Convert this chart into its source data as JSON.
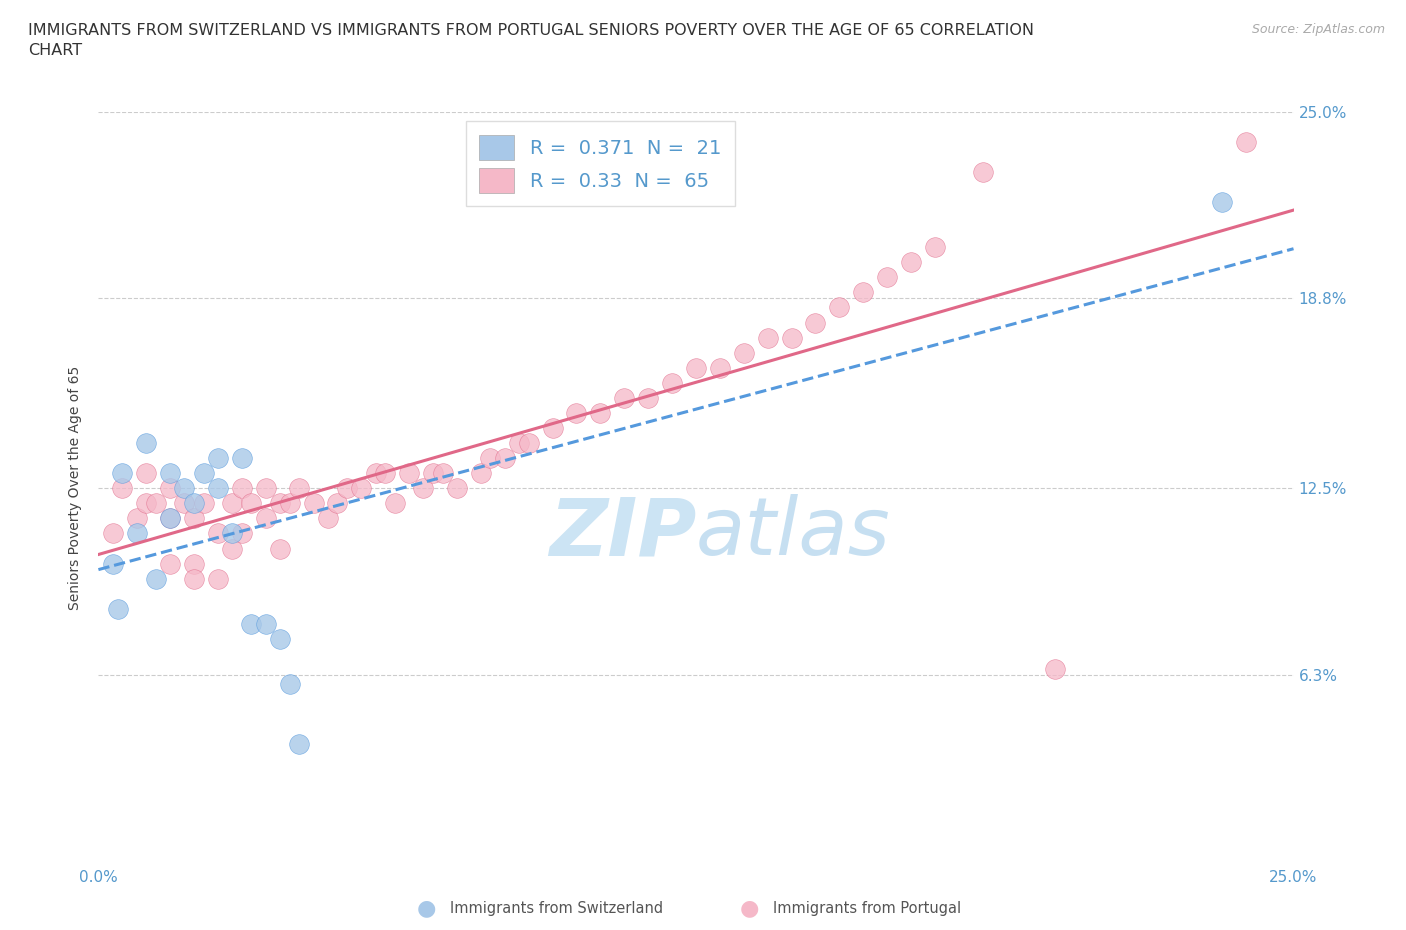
{
  "title": "IMMIGRANTS FROM SWITZERLAND VS IMMIGRANTS FROM PORTUGAL SENIORS POVERTY OVER THE AGE OF 65 CORRELATION\nCHART",
  "source": "Source: ZipAtlas.com",
  "ylabel": "Seniors Poverty Over the Age of 65",
  "legend_labels": [
    "Immigrants from Switzerland",
    "Immigrants from Portugal"
  ],
  "r_switzerland": 0.371,
  "n_switzerland": 21,
  "r_portugal": 0.33,
  "n_portugal": 65,
  "xlim": [
    0.0,
    0.25
  ],
  "ylim": [
    0.0,
    0.25
  ],
  "yticks": [
    0.063,
    0.125,
    0.188,
    0.25
  ],
  "ytick_labels": [
    "6.3%",
    "12.5%",
    "18.8%",
    "25.0%"
  ],
  "xticks": [
    0.0,
    0.0625,
    0.125,
    0.1875,
    0.25
  ],
  "xtick_labels": [
    "0.0%",
    "",
    "",
    "",
    "25.0%"
  ],
  "color_switzerland": "#a8c8e8",
  "color_portugal": "#f5b8c8",
  "trendline_color_switzerland": "#5599dd",
  "trendline_color_portugal": "#e06888",
  "watermark_color": "#cce4f4",
  "tick_color": "#5599cc",
  "title_fontsize": 11.5,
  "axis_label_fontsize": 10,
  "tick_fontsize": 11,
  "background_color": "#ffffff",
  "swiss_x": [
    0.003,
    0.004,
    0.005,
    0.008,
    0.01,
    0.012,
    0.015,
    0.015,
    0.018,
    0.02,
    0.022,
    0.025,
    0.025,
    0.028,
    0.03,
    0.032,
    0.035,
    0.038,
    0.04,
    0.042,
    0.235
  ],
  "swiss_y": [
    0.1,
    0.085,
    0.13,
    0.11,
    0.14,
    0.095,
    0.13,
    0.115,
    0.125,
    0.12,
    0.13,
    0.135,
    0.125,
    0.11,
    0.135,
    0.08,
    0.08,
    0.075,
    0.06,
    0.04,
    0.22
  ],
  "port_x": [
    0.003,
    0.005,
    0.008,
    0.01,
    0.01,
    0.012,
    0.015,
    0.015,
    0.015,
    0.018,
    0.02,
    0.02,
    0.02,
    0.022,
    0.025,
    0.025,
    0.028,
    0.028,
    0.03,
    0.03,
    0.032,
    0.035,
    0.035,
    0.038,
    0.038,
    0.04,
    0.042,
    0.045,
    0.048,
    0.05,
    0.052,
    0.055,
    0.058,
    0.06,
    0.062,
    0.065,
    0.068,
    0.07,
    0.072,
    0.075,
    0.08,
    0.082,
    0.085,
    0.088,
    0.09,
    0.095,
    0.1,
    0.105,
    0.11,
    0.115,
    0.12,
    0.125,
    0.13,
    0.135,
    0.14,
    0.145,
    0.15,
    0.155,
    0.16,
    0.165,
    0.17,
    0.175,
    0.2,
    0.185,
    0.24
  ],
  "port_y": [
    0.11,
    0.125,
    0.115,
    0.12,
    0.13,
    0.12,
    0.1,
    0.115,
    0.125,
    0.12,
    0.1,
    0.115,
    0.095,
    0.12,
    0.095,
    0.11,
    0.105,
    0.12,
    0.11,
    0.125,
    0.12,
    0.115,
    0.125,
    0.105,
    0.12,
    0.12,
    0.125,
    0.12,
    0.115,
    0.12,
    0.125,
    0.125,
    0.13,
    0.13,
    0.12,
    0.13,
    0.125,
    0.13,
    0.13,
    0.125,
    0.13,
    0.135,
    0.135,
    0.14,
    0.14,
    0.145,
    0.15,
    0.15,
    0.155,
    0.155,
    0.16,
    0.165,
    0.165,
    0.17,
    0.175,
    0.175,
    0.18,
    0.185,
    0.19,
    0.195,
    0.2,
    0.205,
    0.065,
    0.23,
    0.24
  ]
}
